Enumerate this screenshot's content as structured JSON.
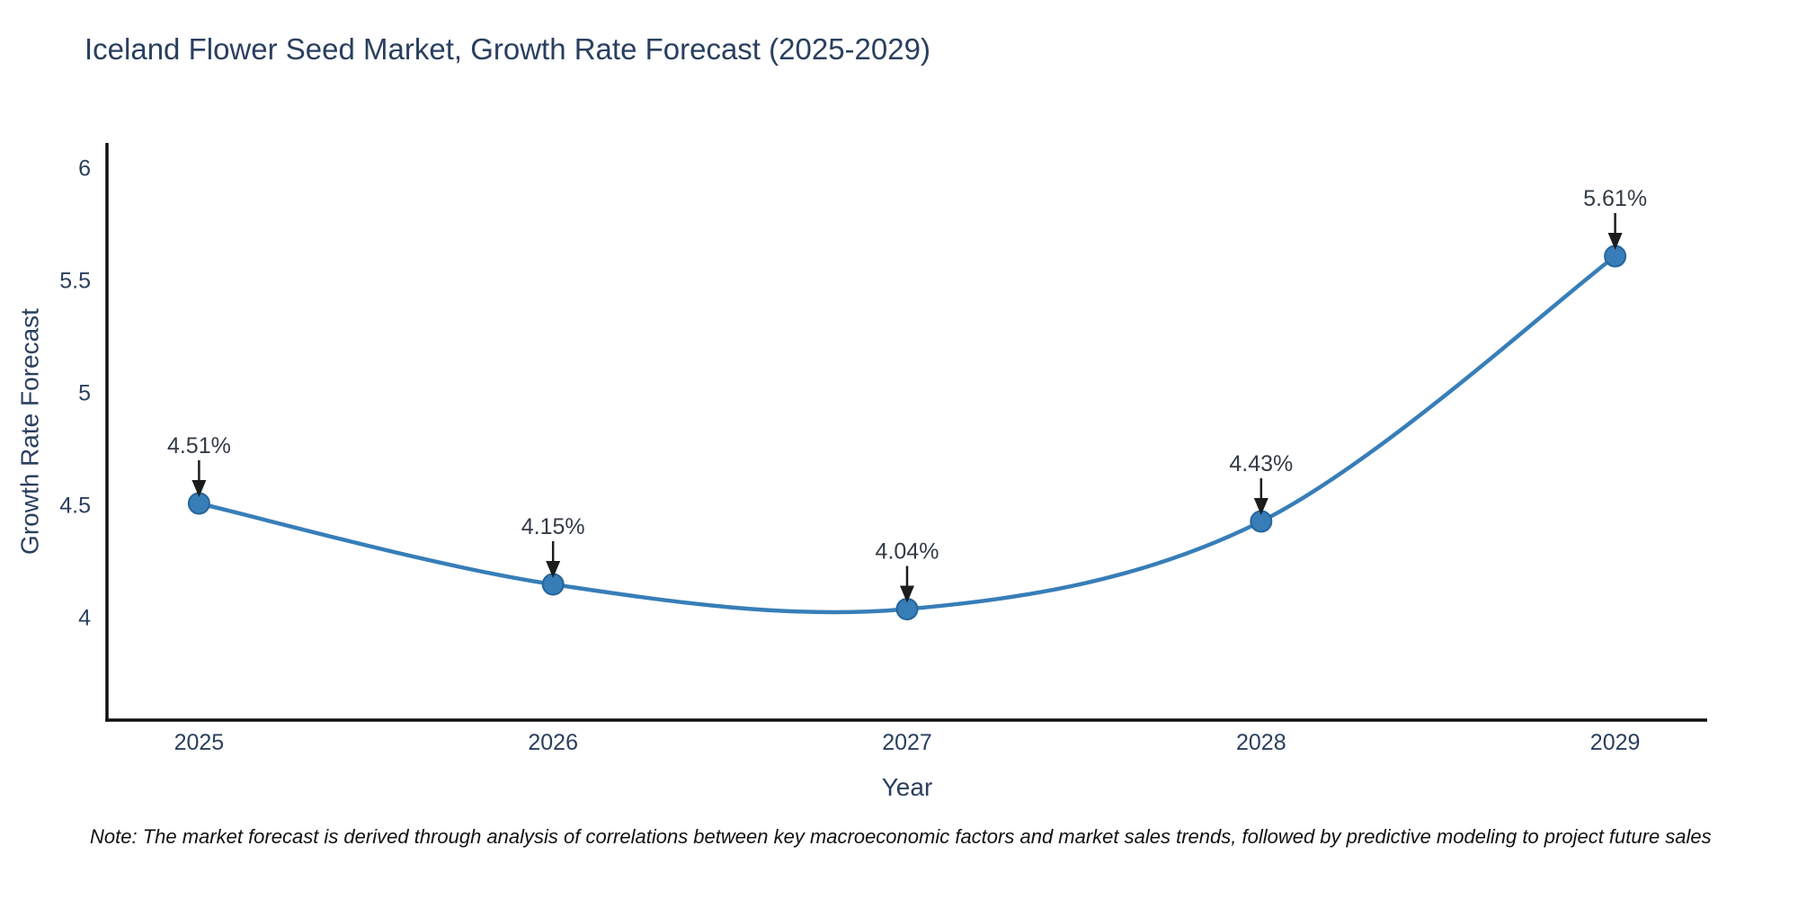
{
  "title": "Iceland Flower Seed Market, Growth Rate Forecast (2025-2029)",
  "note": "Note: The market forecast is derived through analysis of correlations between key macroeconomic factors and market sales trends, followed by predictive modeling to project future sales",
  "chart_data": {
    "type": "line",
    "title": "Iceland Flower Seed Market, Growth Rate Forecast (2025-2029)",
    "xlabel": "Year",
    "ylabel": "Growth Rate Forecast",
    "line_shape": "spline",
    "grid": false,
    "legend": false,
    "points": [
      {
        "year": "2025",
        "x": 2025,
        "value": 4.51,
        "label": "4.51%"
      },
      {
        "year": "2026",
        "x": 2026,
        "value": 4.15,
        "label": "4.15%"
      },
      {
        "year": "2027",
        "x": 2027,
        "value": 4.04,
        "label": "4.04%"
      },
      {
        "year": "2028",
        "x": 2028,
        "value": 4.43,
        "label": "4.43%"
      },
      {
        "year": "2029",
        "x": 2029,
        "value": 5.61,
        "label": "5.61%"
      }
    ],
    "yticks": [
      {
        "value": 4,
        "label": "4"
      },
      {
        "value": 4.5,
        "label": "4.5"
      },
      {
        "value": 5,
        "label": "5"
      },
      {
        "value": 5.5,
        "label": "5.5"
      },
      {
        "value": 6,
        "label": "6"
      }
    ],
    "xlim": [
      2024.74,
      2029.26
    ],
    "ylim": [
      3.546,
      6.114
    ],
    "colors": {
      "line": "#377eb8",
      "marker": "#377eb8",
      "marker_edge": "#27659a",
      "arrow": "#1c1c1c",
      "axis": "#0f0f0f",
      "text": "#2a3f5f",
      "annotation": "#333b46"
    }
  }
}
